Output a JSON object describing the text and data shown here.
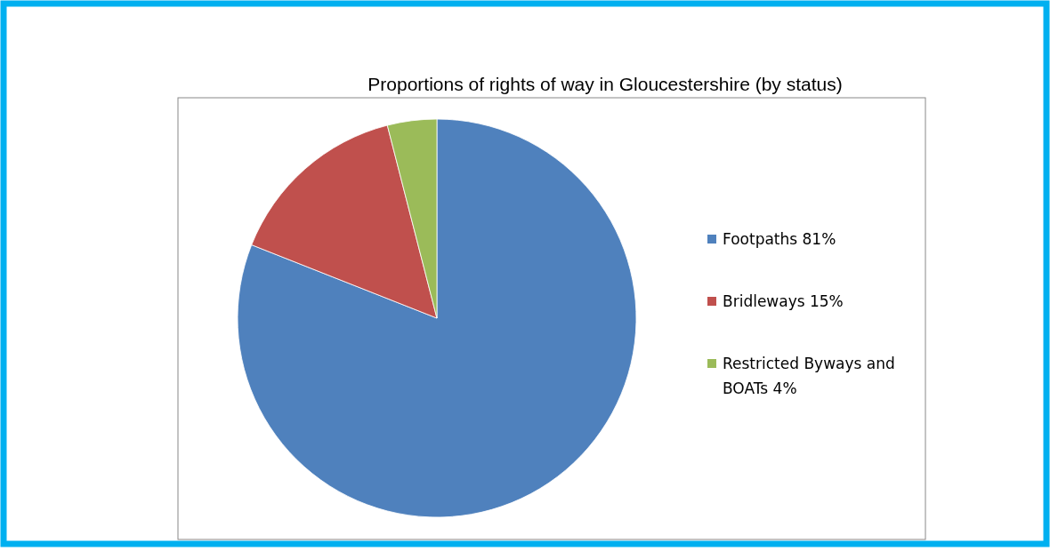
{
  "chart_data": {
    "type": "pie",
    "title": "Proportions of rights of way in Gloucestershire (by status)",
    "categories": [
      "Footpaths 81%",
      "Bridleways 15%",
      "Restricted Byways and BOATs 4%"
    ],
    "values": [
      81,
      15,
      4
    ],
    "colors": [
      "#4f81bd",
      "#c0504d",
      "#9bbb59"
    ],
    "legend": "right"
  }
}
